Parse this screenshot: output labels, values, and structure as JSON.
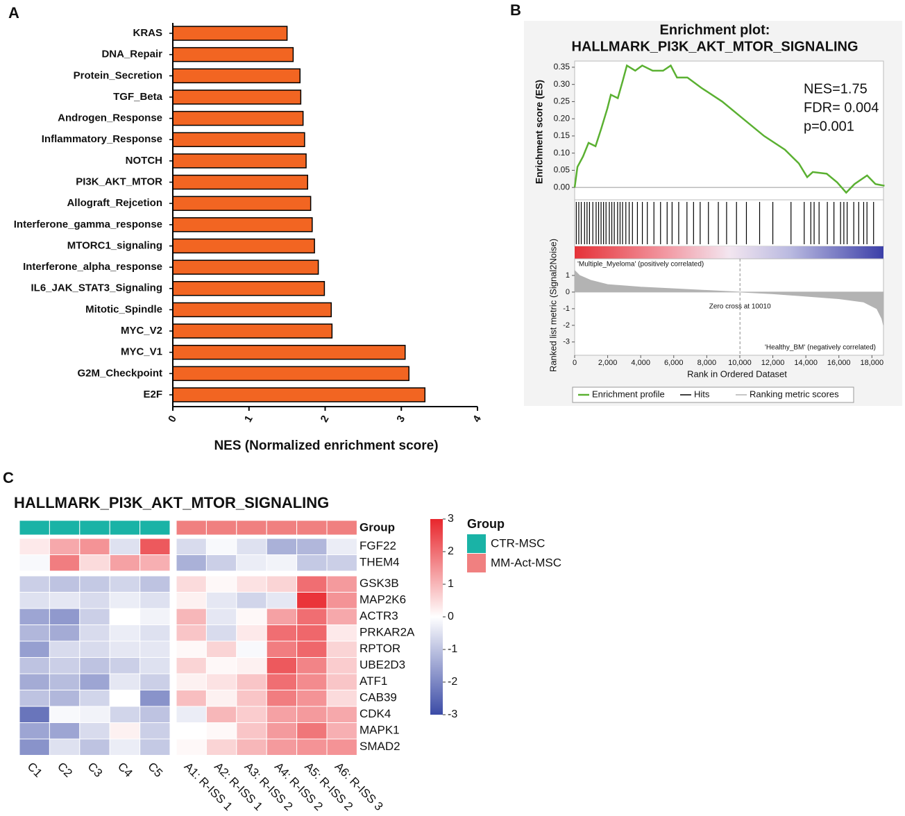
{
  "chart_data": [
    {
      "type": "barh",
      "panel_label": "A",
      "categories": [
        "KRAS",
        "DNA_Repair",
        "Protein_Secretion",
        "TGF_Beta",
        "Androgen_Response",
        "Inflammatory_Response",
        "NOTCH",
        "PI3K_AKT_MTOR",
        "Allograft_Rejcetion",
        "Interferone_gamma_response",
        "MTORC1_signaling",
        "Interferone_alpha_response",
        "IL6_JAK_STAT3_Signaling",
        "Mitotic_Spindle",
        "MYC_V2",
        "MYC_V1",
        "G2M_Checkpoint",
        "E2F"
      ],
      "values": [
        1.5,
        1.58,
        1.67,
        1.68,
        1.71,
        1.73,
        1.75,
        1.77,
        1.81,
        1.83,
        1.86,
        1.91,
        1.99,
        2.08,
        2.09,
        3.05,
        3.1,
        3.31
      ],
      "color": "#f26522",
      "xlim": [
        0,
        4
      ],
      "xticks": [
        0,
        1,
        2,
        3,
        4
      ],
      "xlabel": "NES (Normalized enrichment score)"
    },
    {
      "type": "gsea",
      "panel_label": "B",
      "title": [
        "Enrichment plot:",
        "HALLMARK_PI3K_AKT_MTOR_SIGNALING"
      ],
      "x": [
        0,
        170,
        506,
        843,
        1265,
        1602,
        1981,
        2192,
        2614,
        2909,
        3162,
        3668,
        4090,
        4722,
        5354,
        5818,
        6197,
        6830,
        7673,
        8938,
        10202,
        11467,
        12732,
        13575,
        14081,
        14418,
        15262,
        15894,
        16442,
        16948,
        17707,
        18213,
        18761
      ],
      "series": [
        {
          "name": "Enrichment profile",
          "color": "#5ab031",
          "values": [
            0,
            0.06,
            0.09,
            0.13,
            0.12,
            0.17,
            0.23,
            0.27,
            0.26,
            0.31,
            0.355,
            0.34,
            0.355,
            0.34,
            0.34,
            0.355,
            0.32,
            0.32,
            0.29,
            0.25,
            0.2,
            0.15,
            0.11,
            0.07,
            0.03,
            0.045,
            0.04,
            0.015,
            -0.015,
            0.01,
            0.035,
            0.01,
            0.005
          ]
        }
      ],
      "hits": {
        "name": "Hits",
        "color": "#000000",
        "x": [
          100,
          250,
          400,
          600,
          750,
          900,
          1100,
          1300,
          1450,
          1600,
          1750,
          1900,
          2100,
          2250,
          2400,
          2600,
          2750,
          2900,
          3100,
          3300,
          3500,
          3800,
          4100,
          4400,
          4800,
          5200,
          5600,
          5900,
          6300,
          6800,
          7200,
          7600,
          8100,
          8700,
          9200,
          9800,
          10400,
          11200,
          12000,
          13100,
          13900,
          14300,
          14500,
          14800,
          15300,
          15700,
          16100,
          16300,
          16500,
          16900,
          17200,
          17500,
          17700,
          18100
        ]
      },
      "metric": {
        "name": "Ranking metric scores",
        "color": "#b3b3b3",
        "x": [
          0,
          300,
          1000,
          2000,
          4000,
          6000,
          8000,
          10010,
          12000,
          14000,
          16000,
          17500,
          18300,
          18600,
          18700
        ],
        "values": [
          1.3,
          1.0,
          0.7,
          0.45,
          0.3,
          0.2,
          0.1,
          0,
          -0.1,
          -0.25,
          -0.4,
          -0.6,
          -1.0,
          -1.6,
          -2.0
        ],
        "ylim": [
          -3.8,
          2.0
        ],
        "yticks": [
          -3,
          -2,
          -1,
          0,
          1
        ],
        "ylabel": "Ranked list metric (Signal2Noise)"
      },
      "xlim": [
        0,
        18700
      ],
      "xticks": [
        0,
        {
          "value": 2000,
          "label": "2,000"
        },
        {
          "value": 4000,
          "label": "4,000"
        },
        {
          "value": 6000,
          "label": "6,000"
        },
        {
          "value": 8000,
          "label": "8,000"
        },
        {
          "value": 10000,
          "label": "10,000"
        },
        {
          "value": 12000,
          "label": "12,000"
        },
        {
          "value": 14000,
          "label": "14,000"
        },
        {
          "value": 16000,
          "label": "16,000"
        },
        {
          "value": 18000,
          "label": "18,000"
        }
      ],
      "ylim": [
        -0.036,
        0.368
      ],
      "yticks": [
        {
          "value": 0,
          "label": "0.00"
        },
        {
          "value": 0.05,
          "label": "0.05"
        },
        {
          "value": 0.1,
          "label": "0.10"
        },
        {
          "value": 0.15,
          "label": "0.15"
        },
        {
          "value": 0.2,
          "label": "0.20"
        },
        {
          "value": 0.25,
          "label": "0.25"
        },
        {
          "value": 0.3,
          "label": "0.30"
        },
        {
          "value": 0.35,
          "label": "0.35"
        }
      ],
      "ylabel": "Enrichment score (ES)",
      "xlabel": "Rank in Ordered Dataset",
      "annotations": [
        "NES=1.75",
        "FDR= 0.004",
        "p=0.001"
      ],
      "pos_label": "'Multiple_Myeloma' (positively correlated)",
      "neg_label": "'Healthy_BM' (negatively correlated)",
      "zero_cross": 10010,
      "zero_cross_label": "Zero cross at 10010"
    },
    {
      "type": "heatmap",
      "panel_label": "C",
      "title": "HALLMARK_PI3K_AKT_MTOR_SIGNALING",
      "columns": [
        "C1",
        "C2",
        "C3",
        "C4",
        "C5",
        "A1: R-ISS 1",
        "A2: R-ISS 1",
        "A3: R-ISS 2",
        "A4: R-ISS 2",
        "A5: R-ISS 2",
        "A6: R-ISS 3"
      ],
      "rows": [
        "FGF22",
        "THEM4",
        "GSK3B",
        "MAP2K6",
        "ACTR3",
        "PRKAR2A",
        "RPTOR",
        "UBE2D3",
        "ATF1",
        "CAB39",
        "CDK4",
        "MAPK1",
        "SMAD2"
      ],
      "values": [
        [
          0.3,
          1.2,
          1.5,
          -0.5,
          2.3,
          -0.6,
          -0.1,
          -0.5,
          -1.3,
          -1.2,
          -0.3
        ],
        [
          -0.1,
          1.8,
          0.5,
          1.3,
          1.1,
          -1.3,
          -0.8,
          -0.3,
          -0.2,
          -0.9,
          -0.8
        ],
        [
          -0.8,
          -1.0,
          -0.9,
          -0.7,
          -1.0,
          0.5,
          0.1,
          0.4,
          0.6,
          2.0,
          1.4
        ],
        [
          -0.5,
          -0.4,
          -0.6,
          -0.3,
          -0.5,
          0.2,
          -0.4,
          -0.7,
          -0.4,
          2.8,
          1.5
        ],
        [
          -1.5,
          -1.7,
          -0.8,
          0,
          -0.2,
          1.0,
          -0.4,
          0.1,
          1.3,
          2.0,
          1.2
        ],
        [
          -1.2,
          -1.4,
          -0.6,
          -0.3,
          -0.5,
          0.8,
          -0.6,
          0.3,
          2.0,
          2.1,
          0.3
        ],
        [
          -1.6,
          -0.6,
          -0.6,
          -0.4,
          -0.4,
          0.1,
          0.6,
          -0.1,
          1.8,
          2.1,
          0.6
        ],
        [
          -1.0,
          -0.8,
          -1.0,
          -0.8,
          -0.5,
          0.6,
          0.1,
          0.2,
          2.3,
          1.7,
          0.7
        ],
        [
          -1.4,
          -1.1,
          -1.5,
          -0.4,
          -0.8,
          0.2,
          0.4,
          0.8,
          2.0,
          1.6,
          0.8
        ],
        [
          -1.0,
          -1.2,
          -0.7,
          0,
          -1.8,
          0.9,
          0.2,
          0.8,
          1.8,
          1.5,
          0.5
        ],
        [
          -2.3,
          -0.1,
          -0.2,
          -0.7,
          -1.0,
          -0.3,
          1.0,
          0.7,
          1.3,
          1.4,
          1.2
        ],
        [
          -1.5,
          -1.5,
          -0.6,
          0.2,
          -0.8,
          0,
          0.1,
          0.8,
          1.4,
          1.9,
          1.1
        ],
        [
          -1.8,
          -0.5,
          -1.0,
          -0.3,
          -0.9,
          0.1,
          0.6,
          1.0,
          1.4,
          1.5,
          1.5
        ]
      ],
      "row_splits": [
        2
      ],
      "group_label": "Group",
      "column_groups": [
        0,
        0,
        0,
        0,
        0,
        1,
        1,
        1,
        1,
        1,
        1
      ],
      "legend_title": "Group",
      "groups": [
        {
          "name": "CTR-MSC",
          "color": "#1ab3a6"
        },
        {
          "name": "MM-Act-MSC",
          "color": "#f08080"
        }
      ],
      "clim": [
        -3,
        3
      ],
      "cticks": [
        3,
        2,
        1,
        0,
        -1,
        -2,
        -3
      ],
      "colorscale": [
        "#3b4ba6",
        "#ffffff",
        "#e8262c"
      ]
    }
  ]
}
